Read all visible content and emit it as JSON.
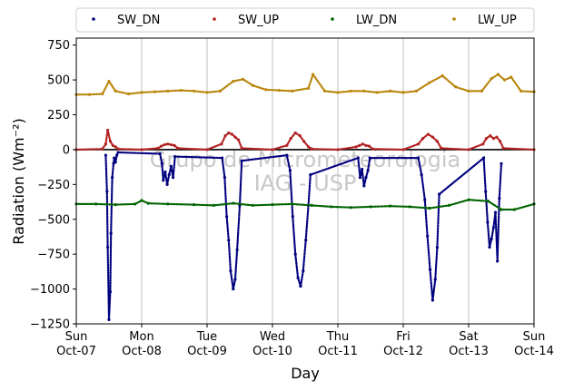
{
  "chart_data": {
    "type": "scatter",
    "xlabel": "Day",
    "ylabel": "Radiation (Wm⁻²)",
    "ylim": [
      -1250,
      800
    ],
    "xlim": [
      0,
      7
    ],
    "grid": "vertical",
    "legend_placement": "top, outside",
    "watermark": [
      "Grupo de Micrometeorologia",
      "IAG - USP"
    ],
    "yticks": [
      "750",
      "500",
      "250",
      "0",
      "−250",
      "−500",
      "−750",
      "−1000",
      "−1250"
    ],
    "xticks": [
      {
        "day": "Sun",
        "date": "Oct-07"
      },
      {
        "day": "Mon",
        "date": "Oct-08"
      },
      {
        "day": "Tue",
        "date": "Oct-09"
      },
      {
        "day": "Wed",
        "date": "Oct-10"
      },
      {
        "day": "Thu",
        "date": "Oct-11"
      },
      {
        "day": "Fri",
        "date": "Oct-12"
      },
      {
        "day": "Sat",
        "date": "Oct-13"
      },
      {
        "day": "Sun",
        "date": "Oct-14"
      }
    ],
    "series": [
      {
        "name": "SW_DN",
        "color": "#00007f",
        "x": [
          0.45,
          0.47,
          0.48,
          0.5,
          0.52,
          0.53,
          0.55,
          0.57,
          0.58,
          0.6,
          0.62,
          0.64,
          1.28,
          1.31,
          1.33,
          1.36,
          1.39,
          1.42,
          1.45,
          1.48,
          1.51,
          2.23,
          2.27,
          2.3,
          2.33,
          2.36,
          2.4,
          2.43,
          2.46,
          2.5,
          2.53,
          3.22,
          3.27,
          3.31,
          3.35,
          3.39,
          3.43,
          3.47,
          3.51,
          3.55,
          3.58,
          4.31,
          4.34,
          4.37,
          4.4,
          4.43,
          4.46,
          4.49,
          5.23,
          5.28,
          5.33,
          5.37,
          5.41,
          5.45,
          5.49,
          5.52,
          5.55,
          6.23,
          6.26,
          6.29,
          6.32,
          6.35,
          6.38,
          6.41,
          6.44,
          6.47,
          6.5
        ],
        "y": [
          -40,
          -300,
          -700,
          -1220,
          -1020,
          -600,
          -200,
          -100,
          -60,
          -90,
          -40,
          -20,
          -30,
          -100,
          -220,
          -160,
          -250,
          -180,
          -120,
          -200,
          -50,
          -60,
          -200,
          -480,
          -650,
          -870,
          -1000,
          -930,
          -720,
          -400,
          -80,
          -40,
          -150,
          -480,
          -750,
          -920,
          -980,
          -870,
          -650,
          -400,
          -180,
          -60,
          -200,
          -140,
          -260,
          -200,
          -150,
          -60,
          -60,
          -180,
          -360,
          -620,
          -860,
          -1080,
          -930,
          -700,
          -320,
          -60,
          -300,
          -520,
          -700,
          -640,
          -560,
          -450,
          -800,
          -350,
          -100
        ]
      },
      {
        "name": "SW_UP",
        "color": "#b22222",
        "x": [
          0.0,
          0.4,
          0.45,
          0.48,
          0.52,
          0.56,
          0.6,
          0.64,
          1.0,
          1.25,
          1.3,
          1.35,
          1.4,
          1.45,
          1.5,
          1.55,
          2.0,
          2.22,
          2.28,
          2.33,
          2.38,
          2.43,
          2.48,
          2.53,
          3.0,
          3.22,
          3.28,
          3.35,
          3.42,
          3.48,
          3.55,
          3.6,
          4.0,
          4.28,
          4.33,
          4.38,
          4.43,
          4.48,
          4.53,
          5.0,
          5.23,
          5.3,
          5.38,
          5.45,
          5.52,
          5.58,
          6.0,
          6.22,
          6.27,
          6.33,
          6.38,
          6.43,
          6.48,
          6.53,
          7.0
        ],
        "y": [
          0,
          5,
          40,
          140,
          60,
          30,
          20,
          5,
          0,
          10,
          25,
          35,
          40,
          35,
          30,
          10,
          0,
          40,
          100,
          120,
          110,
          90,
          70,
          10,
          0,
          30,
          80,
          120,
          100,
          60,
          20,
          5,
          0,
          20,
          30,
          40,
          30,
          25,
          5,
          0,
          40,
          80,
          110,
          90,
          60,
          10,
          0,
          40,
          80,
          100,
          80,
          90,
          60,
          10,
          0
        ]
      },
      {
        "name": "LW_DN",
        "color": "#006400",
        "x": [
          0.0,
          0.3,
          0.6,
          0.9,
          1.0,
          1.1,
          1.4,
          1.8,
          2.1,
          2.4,
          2.7,
          3.0,
          3.3,
          3.6,
          3.9,
          4.2,
          4.5,
          4.8,
          5.1,
          5.4,
          5.7,
          6.0,
          6.3,
          6.5,
          6.7,
          7.0
        ],
        "y": [
          -390,
          -390,
          -395,
          -390,
          -365,
          -385,
          -390,
          -395,
          -400,
          -385,
          -400,
          -395,
          -390,
          -400,
          -410,
          -415,
          -410,
          -405,
          -410,
          -420,
          -400,
          -360,
          -370,
          -430,
          -430,
          -390
        ]
      },
      {
        "name": "LW_UP",
        "color": "#b8860b",
        "x": [
          0.0,
          0.2,
          0.4,
          0.5,
          0.6,
          0.8,
          1.0,
          1.2,
          1.4,
          1.6,
          1.8,
          2.0,
          2.2,
          2.4,
          2.55,
          2.7,
          2.9,
          3.1,
          3.3,
          3.55,
          3.62,
          3.8,
          4.0,
          4.2,
          4.4,
          4.6,
          4.8,
          5.0,
          5.2,
          5.4,
          5.6,
          5.8,
          6.0,
          6.2,
          6.35,
          6.45,
          6.55,
          6.65,
          6.8,
          7.0
        ],
        "y": [
          395,
          395,
          400,
          490,
          420,
          400,
          410,
          415,
          420,
          425,
          420,
          410,
          420,
          490,
          505,
          460,
          430,
          425,
          420,
          440,
          540,
          420,
          410,
          420,
          420,
          410,
          420,
          410,
          420,
          480,
          530,
          450,
          420,
          420,
          510,
          540,
          500,
          520,
          420,
          415
        ]
      }
    ]
  }
}
